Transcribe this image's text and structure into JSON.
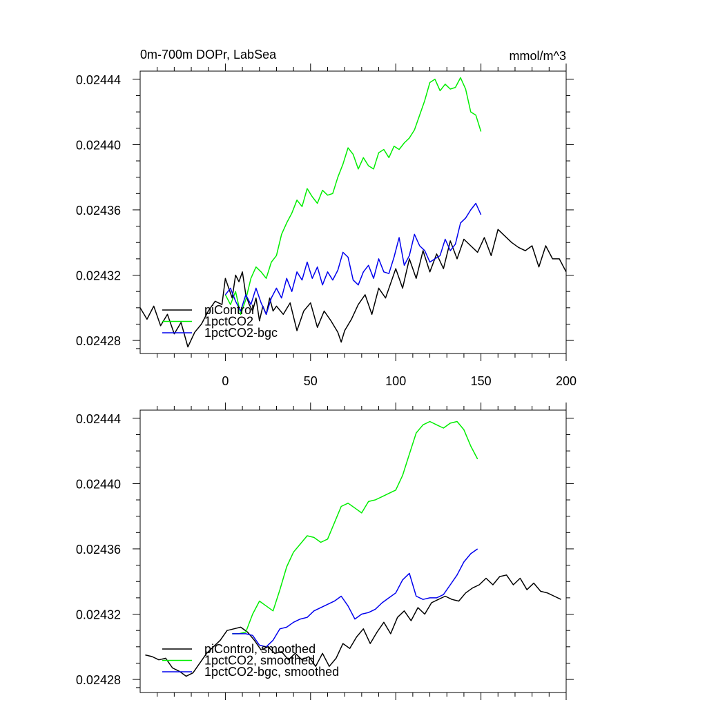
{
  "chart_data": [
    {
      "type": "line",
      "title": "0m-700m DOPr, LabSea",
      "units_label": "mmol/m^3",
      "xlim": [
        -50,
        200
      ],
      "ylim": [
        0.024272,
        0.024445
      ],
      "xticks": [
        0,
        50,
        100,
        150,
        200
      ],
      "xtick_labels": [
        "0",
        "50",
        "100",
        "150",
        "200"
      ],
      "yticks": [
        0.02428,
        0.02432,
        0.02436,
        0.0244,
        0.02444
      ],
      "ytick_labels": [
        "0.02428",
        "0.02432",
        "0.02436",
        "0.02440",
        "0.02444"
      ],
      "legend": [
        "piControl",
        "1pctCO2",
        "1pctCO2-bgc"
      ],
      "legend_position": "bottom-left",
      "series": [
        {
          "name": "piControl",
          "color": "#000000",
          "x": [
            -50,
            -46,
            -42,
            -38,
            -34,
            -30,
            -26,
            -22,
            -18,
            -14,
            -10,
            -6,
            -2,
            0,
            2,
            4,
            6,
            8,
            10,
            12,
            14,
            16,
            18,
            20,
            22,
            24,
            26,
            28,
            30,
            34,
            38,
            42,
            46,
            50,
            54,
            58,
            62,
            66,
            68,
            70,
            74,
            78,
            82,
            86,
            90,
            94,
            98,
            100,
            104,
            108,
            112,
            116,
            120,
            124,
            128,
            132,
            136,
            140,
            144,
            148,
            152,
            156,
            160,
            164,
            168,
            172,
            176,
            180,
            184,
            188,
            192,
            196,
            200
          ],
          "y": [
            0.0243,
            0.024293,
            0.024301,
            0.024289,
            0.024296,
            0.024284,
            0.024291,
            0.024276,
            0.024285,
            0.02429,
            0.024298,
            0.024304,
            0.024302,
            0.024318,
            0.024312,
            0.024306,
            0.02432,
            0.024316,
            0.024322,
            0.024308,
            0.024302,
            0.024298,
            0.024306,
            0.024292,
            0.024301,
            0.024296,
            0.024306,
            0.024298,
            0.024301,
            0.024296,
            0.024303,
            0.024286,
            0.024298,
            0.024303,
            0.024288,
            0.024298,
            0.024292,
            0.024285,
            0.024279,
            0.024286,
            0.024293,
            0.024302,
            0.024308,
            0.024296,
            0.024312,
            0.024306,
            0.024318,
            0.024324,
            0.024312,
            0.02433,
            0.024318,
            0.024335,
            0.024322,
            0.024333,
            0.024324,
            0.024341,
            0.02433,
            0.024342,
            0.024338,
            0.024334,
            0.024343,
            0.024332,
            0.024348,
            0.024344,
            0.02434,
            0.024337,
            0.024335,
            0.024338,
            0.024325,
            0.024338,
            0.02433,
            0.02433,
            0.024322
          ]
        },
        {
          "name": "1pctCO2",
          "color": "#00ee00",
          "x": [
            0,
            3,
            6,
            9,
            12,
            15,
            18,
            21,
            24,
            27,
            30,
            33,
            36,
            39,
            42,
            45,
            48,
            51,
            54,
            57,
            60,
            63,
            66,
            69,
            72,
            75,
            78,
            81,
            84,
            87,
            90,
            93,
            96,
            99,
            102,
            105,
            108,
            111,
            114,
            117,
            120,
            123,
            126,
            129,
            132,
            135,
            138,
            141,
            144,
            147,
            150
          ],
          "y": [
            0.024308,
            0.024302,
            0.02431,
            0.024296,
            0.024305,
            0.024318,
            0.024325,
            0.024322,
            0.024318,
            0.024328,
            0.024332,
            0.024345,
            0.024352,
            0.024358,
            0.024366,
            0.024362,
            0.024373,
            0.024368,
            0.024364,
            0.024372,
            0.024369,
            0.02437,
            0.02438,
            0.024388,
            0.024398,
            0.024394,
            0.024385,
            0.024392,
            0.024387,
            0.024385,
            0.024395,
            0.024397,
            0.024392,
            0.024399,
            0.024397,
            0.024401,
            0.024404,
            0.024409,
            0.024418,
            0.024427,
            0.024438,
            0.02444,
            0.024433,
            0.024437,
            0.024434,
            0.024435,
            0.024441,
            0.024434,
            0.02442,
            0.024418,
            0.024408
          ]
        },
        {
          "name": "1pctCO2-bgc",
          "color": "#0000ee",
          "x": [
            0,
            3,
            6,
            9,
            12,
            15,
            18,
            21,
            24,
            27,
            30,
            33,
            36,
            39,
            42,
            45,
            48,
            51,
            54,
            57,
            60,
            63,
            66,
            69,
            72,
            75,
            78,
            81,
            84,
            87,
            90,
            93,
            96,
            99,
            102,
            105,
            108,
            111,
            114,
            117,
            120,
            123,
            126,
            129,
            132,
            135,
            138,
            141,
            144,
            147,
            150
          ],
          "y": [
            0.024308,
            0.024312,
            0.024304,
            0.024298,
            0.024308,
            0.024302,
            0.024312,
            0.024303,
            0.024296,
            0.024306,
            0.024312,
            0.024306,
            0.024318,
            0.02431,
            0.024322,
            0.024317,
            0.024328,
            0.024318,
            0.024325,
            0.024314,
            0.024322,
            0.024317,
            0.024323,
            0.024334,
            0.024331,
            0.024317,
            0.024314,
            0.024322,
            0.024326,
            0.024318,
            0.02433,
            0.024322,
            0.024321,
            0.024331,
            0.024343,
            0.024326,
            0.024332,
            0.024345,
            0.024338,
            0.024335,
            0.024328,
            0.02433,
            0.024332,
            0.024342,
            0.024335,
            0.024339,
            0.024352,
            0.024355,
            0.02436,
            0.024364,
            0.024357
          ]
        }
      ]
    },
    {
      "type": "line",
      "xlim": [
        -50,
        200
      ],
      "ylim": [
        0.024272,
        0.024445
      ],
      "xticks": [
        0,
        50,
        100,
        150,
        200
      ],
      "yticks": [
        0.02428,
        0.02432,
        0.02436,
        0.0244,
        0.02444
      ],
      "ytick_labels": [
        "0.02428",
        "0.02432",
        "0.02436",
        "0.02440",
        "0.02444"
      ],
      "legend": [
        "piControl, smoothed",
        "1pctCO2, smoothed",
        "1pctCO2-bgc, smoothed"
      ],
      "legend_position": "bottom-left",
      "series": [
        {
          "name": "piControl, smoothed",
          "color": "#000000",
          "x": [
            -47,
            -43,
            -39,
            -35,
            -31,
            -27,
            -23,
            -19,
            -15,
            -11,
            -7,
            -3,
            1,
            5,
            9,
            13,
            17,
            21,
            25,
            29,
            33,
            37,
            41,
            45,
            49,
            53,
            57,
            61,
            65,
            69,
            73,
            77,
            81,
            85,
            89,
            93,
            97,
            101,
            105,
            109,
            113,
            117,
            121,
            125,
            129,
            133,
            137,
            141,
            145,
            149,
            153,
            157,
            161,
            165,
            169,
            173,
            177,
            181,
            185,
            189,
            193,
            197
          ],
          "y": [
            0.024295,
            0.024294,
            0.024292,
            0.024293,
            0.024287,
            0.024285,
            0.024282,
            0.024284,
            0.02429,
            0.024296,
            0.0243,
            0.024304,
            0.02431,
            0.024311,
            0.024312,
            0.024309,
            0.024304,
            0.024298,
            0.0243,
            0.024296,
            0.024297,
            0.024292,
            0.024296,
            0.024292,
            0.024294,
            0.024288,
            0.024296,
            0.024288,
            0.024293,
            0.024302,
            0.024299,
            0.024306,
            0.024311,
            0.024302,
            0.024309,
            0.024315,
            0.024308,
            0.024318,
            0.024322,
            0.024316,
            0.024324,
            0.02432,
            0.024327,
            0.024329,
            0.024331,
            0.024329,
            0.024328,
            0.024333,
            0.024336,
            0.024338,
            0.024342,
            0.024338,
            0.024343,
            0.024344,
            0.024338,
            0.024342,
            0.024335,
            0.024339,
            0.024334,
            0.024333,
            0.024331,
            0.024329
          ]
        },
        {
          "name": "1pctCO2, smoothed",
          "color": "#00ee00",
          "x": [
            4,
            8,
            12,
            16,
            20,
            24,
            28,
            32,
            36,
            40,
            44,
            48,
            52,
            56,
            60,
            64,
            68,
            72,
            76,
            80,
            84,
            88,
            92,
            96,
            100,
            104,
            108,
            112,
            116,
            120,
            124,
            128,
            132,
            136,
            140,
            144,
            148
          ],
          "y": [
            0.024308,
            0.024308,
            0.024309,
            0.02432,
            0.024328,
            0.024325,
            0.024322,
            0.024335,
            0.024349,
            0.024358,
            0.024363,
            0.024368,
            0.024367,
            0.024364,
            0.024366,
            0.024376,
            0.024386,
            0.024388,
            0.024385,
            0.024382,
            0.024389,
            0.02439,
            0.024392,
            0.024394,
            0.024396,
            0.024405,
            0.024418,
            0.024431,
            0.024436,
            0.024438,
            0.024436,
            0.024434,
            0.024437,
            0.024438,
            0.024433,
            0.024423,
            0.024415
          ]
        },
        {
          "name": "1pctCO2-bgc, smoothed",
          "color": "#0000ee",
          "x": [
            4,
            8,
            12,
            16,
            20,
            24,
            28,
            32,
            36,
            40,
            44,
            48,
            52,
            56,
            60,
            64,
            68,
            72,
            76,
            80,
            84,
            88,
            92,
            96,
            100,
            104,
            108,
            112,
            116,
            120,
            124,
            128,
            132,
            136,
            140,
            144,
            148
          ],
          "y": [
            0.024308,
            0.024308,
            0.024308,
            0.024307,
            0.024301,
            0.0243,
            0.024304,
            0.024311,
            0.024312,
            0.024315,
            0.024317,
            0.024318,
            0.024322,
            0.024324,
            0.024326,
            0.024328,
            0.024331,
            0.024325,
            0.024317,
            0.02432,
            0.024321,
            0.024323,
            0.024327,
            0.02433,
            0.024333,
            0.024341,
            0.024345,
            0.024331,
            0.024329,
            0.02433,
            0.02433,
            0.024332,
            0.024338,
            0.024344,
            0.024352,
            0.024357,
            0.02436
          ]
        }
      ]
    }
  ]
}
